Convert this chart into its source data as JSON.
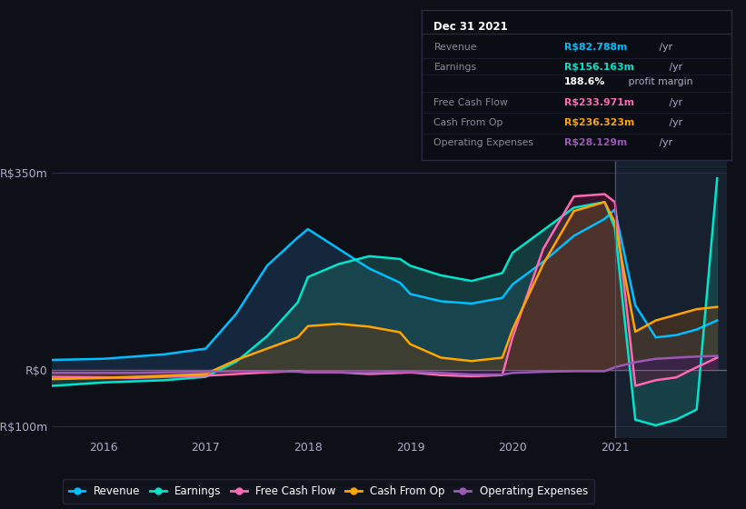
{
  "bg_color": "#0d1117",
  "plot_bg_color": "#0d1117",
  "title": "Dec 31 2021",
  "ylim": [
    -120,
    390
  ],
  "xlim": [
    2015.5,
    2022.1
  ],
  "ytick_labels": [
    "R$350m",
    "R$0",
    "-R$100m"
  ],
  "ytick_values": [
    350,
    0,
    -100
  ],
  "xtick_labels": [
    "2016",
    "2017",
    "2018",
    "2019",
    "2020",
    "2021"
  ],
  "xtick_values": [
    2016,
    2017,
    2018,
    2019,
    2020,
    2021
  ],
  "gridline_y": [
    350,
    0,
    -100
  ],
  "legend": [
    {
      "label": "Revenue",
      "color": "#00bfff"
    },
    {
      "label": "Earnings",
      "color": "#00e5cc"
    },
    {
      "label": "Free Cash Flow",
      "color": "#ff69b4"
    },
    {
      "label": "Cash From Op",
      "color": "#ffa500"
    },
    {
      "label": "Operating Expenses",
      "color": "#9b59b6"
    }
  ],
  "series": {
    "x": [
      2015.5,
      2016.0,
      2016.3,
      2016.6,
      2017.0,
      2017.3,
      2017.6,
      2017.9,
      2018.0,
      2018.3,
      2018.6,
      2018.9,
      2019.0,
      2019.3,
      2019.6,
      2019.9,
      2020.0,
      2020.3,
      2020.6,
      2020.9,
      2021.0,
      2021.2,
      2021.4,
      2021.6,
      2021.8,
      2022.0
    ],
    "revenue": [
      18,
      20,
      24,
      28,
      38,
      100,
      185,
      235,
      250,
      215,
      180,
      155,
      135,
      122,
      118,
      128,
      152,
      192,
      238,
      268,
      285,
      115,
      58,
      62,
      72,
      88
    ],
    "earnings": [
      -28,
      -22,
      -20,
      -18,
      -12,
      15,
      60,
      120,
      165,
      188,
      202,
      197,
      185,
      168,
      158,
      172,
      208,
      248,
      288,
      298,
      252,
      -88,
      -98,
      -88,
      -70,
      340
    ],
    "fcf": [
      -12,
      -13,
      -14,
      -12,
      -10,
      -7,
      -4,
      -2,
      -4,
      -4,
      -7,
      -5,
      -4,
      -9,
      -11,
      -9,
      58,
      215,
      308,
      312,
      298,
      -28,
      -18,
      -13,
      5,
      22
    ],
    "cashfromop": [
      -16,
      -14,
      -12,
      -10,
      -7,
      18,
      38,
      58,
      78,
      82,
      77,
      67,
      46,
      22,
      16,
      22,
      72,
      188,
      282,
      298,
      262,
      68,
      88,
      98,
      108,
      112
    ],
    "opex": [
      -5,
      -5,
      -5,
      -4,
      -3,
      -2,
      -2,
      -3,
      -4,
      -4,
      -4,
      -3,
      -3,
      -5,
      -8,
      -8,
      -5,
      -3,
      -2,
      -2,
      5,
      14,
      20,
      22,
      24,
      25
    ]
  },
  "vertical_line_x": 2021.0,
  "colors": {
    "revenue": "#00bfff",
    "earnings": "#00e5cc",
    "fcf": "#ff69b4",
    "cashfromop": "#ffa500",
    "opex": "#9b59b6"
  },
  "fill_colors": {
    "revenue": "#1a3a5c",
    "earnings": "#1a5c5c",
    "fcf": "#5c1a3a",
    "cashfromop": "#5c3a1a",
    "opex": "#3a1a5c"
  },
  "info_rows": [
    {
      "label": "Revenue",
      "value": "R$82.788m",
      "unit": " /yr",
      "color": "#00bfff",
      "bold_value": true
    },
    {
      "label": "Earnings",
      "value": "R$156.163m",
      "unit": " /yr",
      "color": "#00e5cc",
      "bold_value": true
    },
    {
      "label": "",
      "value": "188.6%",
      "unit": " profit margin",
      "color": "#ffffff",
      "bold_value": true
    },
    {
      "label": "Free Cash Flow",
      "value": "R$233.971m",
      "unit": " /yr",
      "color": "#ff69b4",
      "bold_value": true
    },
    {
      "label": "Cash From Op",
      "value": "R$236.323m",
      "unit": " /yr",
      "color": "#ffa500",
      "bold_value": true
    },
    {
      "label": "Operating Expenses",
      "value": "R$28.129m",
      "unit": " /yr",
      "color": "#9b59b6",
      "bold_value": true
    }
  ]
}
